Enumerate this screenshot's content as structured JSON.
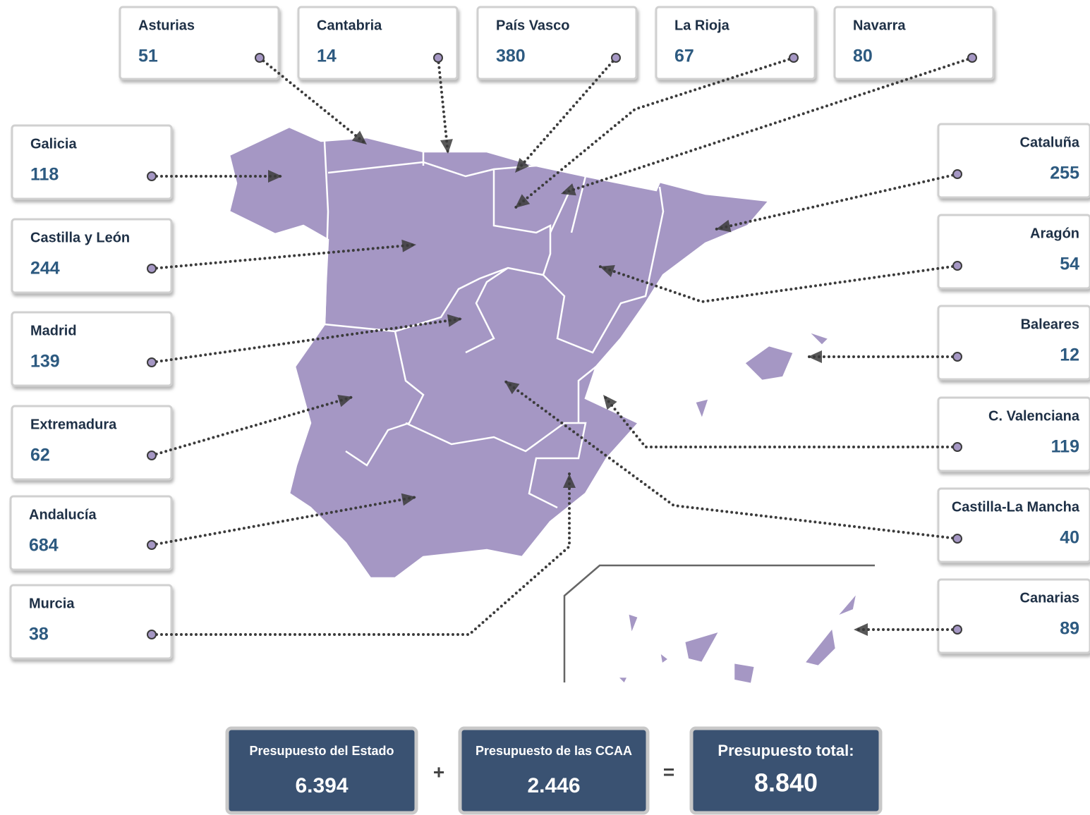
{
  "regions": [
    {
      "name": "Asturias",
      "value": 51
    },
    {
      "name": "Cantabria",
      "value": 14
    },
    {
      "name": "País Vasco",
      "value": 380
    },
    {
      "name": "La Rioja",
      "value": 67
    },
    {
      "name": "Navarra",
      "value": 80
    },
    {
      "name": "Galicia",
      "value": 118
    },
    {
      "name": "Castilla y León",
      "value": 244
    },
    {
      "name": "Madrid",
      "value": 139
    },
    {
      "name": "Extremadura",
      "value": 62
    },
    {
      "name": "Andalucía",
      "value": 684
    },
    {
      "name": "Murcia",
      "value": 38
    },
    {
      "name": "Cataluña",
      "value": 255
    },
    {
      "name": "Aragón",
      "value": 54
    },
    {
      "name": "Baleares",
      "value": 12
    },
    {
      "name": "C. Valenciana",
      "value": 119
    },
    {
      "name": "Castilla-La Mancha",
      "value": 40
    },
    {
      "name": "Canarias",
      "value": 89
    }
  ],
  "summary": [
    {
      "label": "Presupuesto del Estado",
      "value": "6.394"
    },
    {
      "label": "Presupuesto de las CCAA",
      "value": "2.446"
    },
    {
      "label": "Presupuesto total:",
      "value": "8.840"
    }
  ],
  "plus": "+",
  "equals": "="
}
